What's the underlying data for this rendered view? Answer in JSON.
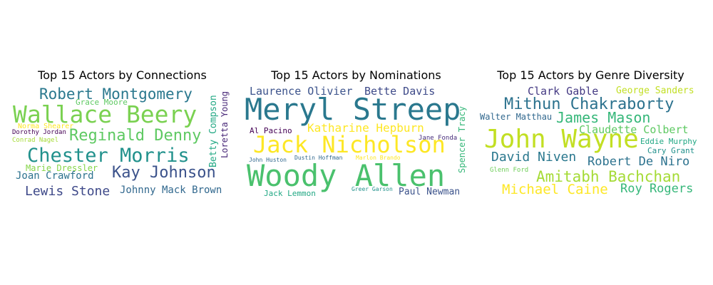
{
  "panels": [
    {
      "title": "Top 15 Actors by Connections",
      "words": [
        {
          "text": "Robert Montgomery",
          "color": "#2a788e"
        },
        {
          "text": "Grace Moore",
          "color": "#5ec962"
        },
        {
          "text": "Wallace Beery",
          "color": "#7ad151"
        },
        {
          "text": "Norma Shearer",
          "color": "#fde725"
        },
        {
          "text": "Dorothy Jordan",
          "color": "#440154"
        },
        {
          "text": "Conrad Nagel",
          "color": "#a5db36"
        },
        {
          "text": "Reginald Denny",
          "color": "#5ec962"
        },
        {
          "text": "Chester Morris",
          "color": "#21918c"
        },
        {
          "text": "Marie Dressler",
          "color": "#86d549"
        },
        {
          "text": "Joan Crawford",
          "color": "#2c728e"
        },
        {
          "text": "Kay Johnson",
          "color": "#3b528b"
        },
        {
          "text": "Lewis Stone",
          "color": "#3e4989"
        },
        {
          "text": "Johnny Mack Brown",
          "color": "#31688e"
        },
        {
          "text": "Betty Compson",
          "color": "#22a884"
        },
        {
          "text": "Loretta Young",
          "color": "#482878"
        }
      ]
    },
    {
      "title": "Top 15 Actors by Nominations",
      "words": [
        {
          "text": "Laurence Olivier",
          "color": "#3b528b"
        },
        {
          "text": "Bette Davis",
          "color": "#3e4a89"
        },
        {
          "text": "Meryl Streep",
          "color": "#2a788e"
        },
        {
          "text": "Spencer Tracy",
          "color": "#35b779"
        },
        {
          "text": "Al Pacino",
          "color": "#440154"
        },
        {
          "text": "Katharine Hepburn",
          "color": "#fde725"
        },
        {
          "text": "Jane Fonda",
          "color": "#472d7b"
        },
        {
          "text": "Jack Nicholson",
          "color": "#fde725"
        },
        {
          "text": "John Huston",
          "color": "#31688e"
        },
        {
          "text": "Dustin Hoffman",
          "color": "#31688e"
        },
        {
          "text": "Marlon Brando",
          "color": "#fde725"
        },
        {
          "text": "Woody Allen",
          "color": "#4ac16d"
        },
        {
          "text": "Jack Lemmon",
          "color": "#22a884"
        },
        {
          "text": "Greer Garson",
          "color": "#21918c"
        },
        {
          "text": "Paul Newman",
          "color": "#3b528b"
        }
      ]
    },
    {
      "title": "Top 15 Actors by Genre Diversity",
      "words": [
        {
          "text": "Clark Gable",
          "color": "#443983"
        },
        {
          "text": "George Sanders",
          "color": "#c2df23"
        },
        {
          "text": "Mithun Chakraborty",
          "color": "#2c728e"
        },
        {
          "text": "Walter Matthau",
          "color": "#31688e"
        },
        {
          "text": "James Mason",
          "color": "#35b779"
        },
        {
          "text": "Claudette Colbert",
          "color": "#5ec962"
        },
        {
          "text": "John Wayne",
          "color": "#c2df23"
        },
        {
          "text": "Eddie Murphy",
          "color": "#22a884"
        },
        {
          "text": "Cary Grant",
          "color": "#21918c"
        },
        {
          "text": "David Niven",
          "color": "#2a788e"
        },
        {
          "text": "Robert De Niro",
          "color": "#2c728e"
        },
        {
          "text": "Glenn Ford",
          "color": "#6ece58"
        },
        {
          "text": "Amitabh Bachchan",
          "color": "#a5db36"
        },
        {
          "text": "Michael Caine",
          "color": "#fde725"
        },
        {
          "text": "Roy Rogers",
          "color": "#35b779"
        }
      ]
    }
  ]
}
